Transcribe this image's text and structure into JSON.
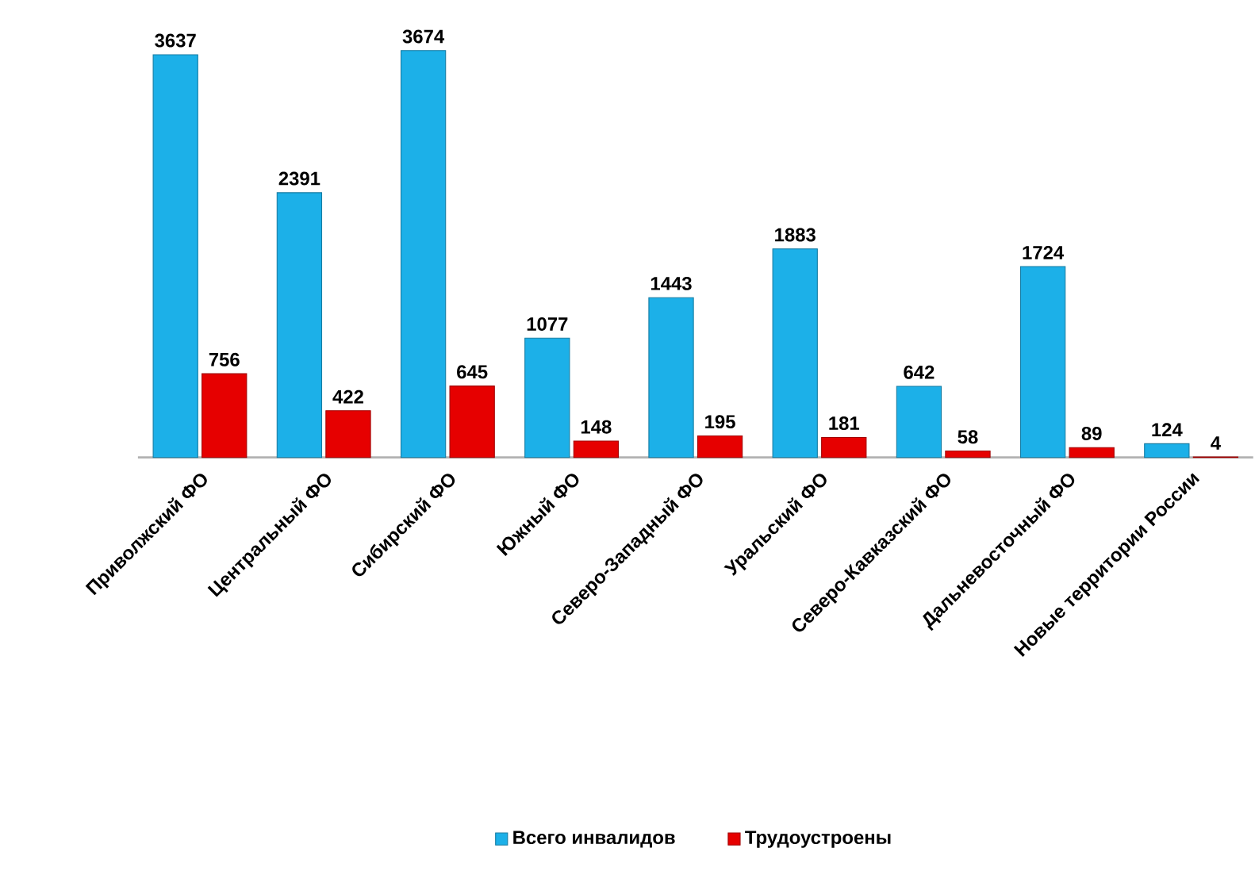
{
  "chart_data": {
    "type": "bar",
    "categories": [
      "Приволжский ФО",
      "Центральный ФО",
      "Сибирский ФО",
      "Южный ФО",
      "Северо-Западный ФО",
      "Уральский ФО",
      "Северо-Кавказский ФО",
      "Дальневосточный ФО",
      "Новые территории России"
    ],
    "series": [
      {
        "name": "Всего инвалидов",
        "color": "#1cb0e8",
        "values": [
          3637,
          2391,
          3674,
          1077,
          1443,
          1883,
          642,
          1724,
          124
        ]
      },
      {
        "name": "Трудоустроены",
        "color": "#e60000",
        "values": [
          756,
          422,
          645,
          148,
          195,
          181,
          58,
          89,
          4
        ]
      }
    ],
    "data_labels": true,
    "legend": "bottom"
  }
}
